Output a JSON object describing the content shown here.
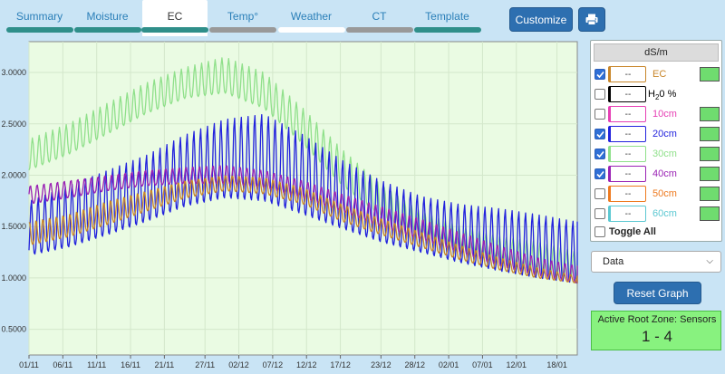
{
  "tabs": [
    {
      "label": "Summary",
      "bar_color": "#2f8f8a",
      "active": false
    },
    {
      "label": "Moisture",
      "bar_color": "#2f8f8a",
      "active": false
    },
    {
      "label": "EC",
      "bar_color": "#2f8f8a",
      "active": true
    },
    {
      "label": "Temp°",
      "bar_color": "#999999",
      "active": false
    },
    {
      "label": "Weather",
      "bar_color": "#ffffff",
      "active": false
    },
    {
      "label": "CT",
      "bar_color": "#999999",
      "active": false
    },
    {
      "label": "Template",
      "bar_color": "#2f8f8a",
      "active": false
    }
  ],
  "toolbar": {
    "customize_label": "Customize",
    "print_icon": "printer-icon"
  },
  "legend": {
    "unit": "dS/m",
    "rows": [
      {
        "key": "ec",
        "label": "EC",
        "value": "--",
        "checked": true,
        "color": "#c8862a",
        "swatch": true
      },
      {
        "key": "h2o",
        "label_main": "H",
        "label_sub": "2",
        "label_rest": "0 %",
        "value": "--",
        "checked": false,
        "color": "#000000",
        "swatch": false
      },
      {
        "key": "10cm",
        "label": "10cm",
        "value": "--",
        "checked": false,
        "color": "#e63fb4",
        "swatch": true
      },
      {
        "key": "20cm",
        "label": "20cm",
        "value": "--",
        "checked": true,
        "color": "#2222dd",
        "swatch": true
      },
      {
        "key": "30cm",
        "label": "30cm",
        "value": "--",
        "checked": true,
        "color": "#8fe08a",
        "swatch": true
      },
      {
        "key": "40cm",
        "label": "40cm",
        "value": "--",
        "checked": true,
        "color": "#9a22b4",
        "swatch": true
      },
      {
        "key": "50cm",
        "label": "50cm",
        "value": "--",
        "checked": false,
        "color": "#ee7a1f",
        "swatch": true
      },
      {
        "key": "60cm",
        "label": "60cm",
        "value": "--",
        "checked": false,
        "color": "#5cc8d2",
        "swatch": true
      }
    ],
    "toggle_all_label": "Toggle All",
    "swatch_color": "#6fdc6f"
  },
  "data_select": {
    "value": "Data"
  },
  "reset_label": "Reset Graph",
  "root_zone": {
    "title": "Active Root Zone: Sensors",
    "value": "1 - 4"
  },
  "chart_data": {
    "type": "line",
    "title": "",
    "xlabel": "",
    "ylabel": "",
    "ylim": [
      0.25,
      3.3
    ],
    "y_ticks": [
      "0.5000",
      "1.0000",
      "1.5000",
      "2.0000",
      "2.5000",
      "3.0000"
    ],
    "x_ticks": [
      "01/11",
      "06/11",
      "11/11",
      "16/11",
      "21/11",
      "27/11",
      "02/12",
      "07/12",
      "12/12",
      "17/12",
      "23/12",
      "28/12",
      "02/01",
      "07/01",
      "12/01",
      "18/01"
    ],
    "background": "#eafbe3",
    "grid": true,
    "cycles_per_day": 1,
    "series": [
      {
        "key": "30cm",
        "color": "#8fe08a",
        "lows": [
          2.05,
          2.2,
          2.4,
          2.6,
          2.75,
          2.8,
          2.65,
          2.3,
          1.9,
          1.6,
          1.4,
          1.25,
          1.15,
          1.05,
          1.0
        ],
        "highs": [
          2.35,
          2.5,
          2.7,
          2.9,
          3.05,
          3.15,
          3.0,
          2.65,
          2.25,
          1.9,
          1.65,
          1.5,
          1.4,
          1.35,
          1.25
        ]
      },
      {
        "key": "20cm",
        "color": "#2222dd",
        "lows": [
          1.22,
          1.3,
          1.42,
          1.55,
          1.7,
          1.78,
          1.75,
          1.62,
          1.48,
          1.35,
          1.25,
          1.15,
          1.07,
          1.0,
          0.95
        ],
        "highs": [
          1.75,
          1.9,
          2.05,
          2.2,
          2.4,
          2.55,
          2.6,
          2.4,
          2.15,
          1.95,
          1.8,
          1.72,
          1.68,
          1.62,
          1.55
        ]
      },
      {
        "key": "40cm",
        "color": "#9a22b4",
        "lows": [
          1.72,
          1.78,
          1.85,
          1.9,
          1.92,
          1.92,
          1.88,
          1.78,
          1.65,
          1.5,
          1.38,
          1.25,
          1.12,
          1.02,
          0.95
        ],
        "highs": [
          1.9,
          1.95,
          2.0,
          2.05,
          2.08,
          2.1,
          2.05,
          1.95,
          1.82,
          1.7,
          1.58,
          1.45,
          1.32,
          1.2,
          1.12
        ]
      },
      {
        "key": "ec",
        "color": "#c8862a",
        "lows": [
          1.32,
          1.4,
          1.52,
          1.65,
          1.78,
          1.85,
          1.82,
          1.72,
          1.55,
          1.42,
          1.3,
          1.18,
          1.08,
          1.0,
          0.95
        ],
        "highs": [
          1.55,
          1.62,
          1.75,
          1.85,
          1.95,
          2.0,
          1.98,
          1.88,
          1.72,
          1.58,
          1.45,
          1.32,
          1.2,
          1.1,
          1.02
        ]
      }
    ]
  }
}
